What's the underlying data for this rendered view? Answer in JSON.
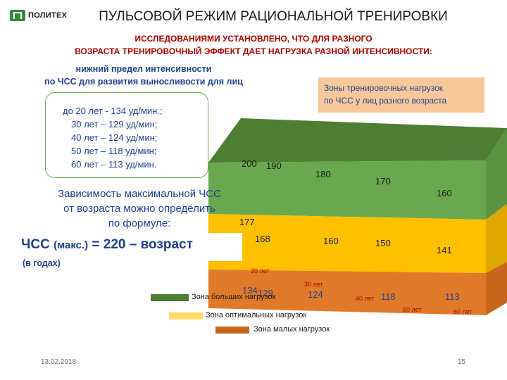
{
  "header": {
    "logo_text": "ПОЛИТЕХ",
    "title": "ПУЛЬСОВОЙ РЕЖИМ РАЦИОНАЛЬНОЙ ТРЕНИРОВКИ",
    "subtitle_line1": "ИССЛЕДОВАНИЯМИ УСТАНОВЛЕНО, ЧТО ДЛЯ РАЗНОГО",
    "subtitle_line2": "ВОЗРАСТА ТРЕНИРОВОЧНЫЙ ЭФФЕКТ ДАЕТ НАГРУЗКА  РАЗНОЙ ИНТЕНСИВНОСТИ:"
  },
  "lower_limit": {
    "line1": "нижний предел интенсивности",
    "line2": "по ЧСС  для развития выносливости  для лиц"
  },
  "age_list": [
    {
      "age": "до 20 лет - ",
      "value": "134 уд/мин.;"
    },
    {
      "age": "30 лет –   ",
      "value": "129 уд/мин;"
    },
    {
      "age": "40 лет –   ",
      "value": "124 уд/мин;"
    },
    {
      "age": "50 лет –   ",
      "value": "118 уд/мин;"
    },
    {
      "age": "60 лет –   ",
      "value": "113 уд/мин."
    }
  ],
  "zones_note": {
    "line1": "Зоны тренировочных нагрузок",
    "line2": "по ЧСС   у лиц разного возраста"
  },
  "formula": {
    "text_line1": "Зависимость максимальной ЧСС",
    "text_line2": "от возраста можно определить",
    "text_line3": "по формуле:",
    "main": "ЧСС",
    "main_small": "(макс.)",
    "rest": "= 220 –  возраст",
    "note": "(в  годах)"
  },
  "chart_data": {
    "type": "area",
    "categories": [
      "20 лет",
      "30 лет",
      "40 лет",
      "50 лет",
      "60 лет"
    ],
    "top_labels": [
      "200",
      "190",
      "180",
      "170",
      "160"
    ],
    "middle_labels": [
      "177",
      "168",
      "160",
      "150",
      "141"
    ],
    "bottom_labels": [
      "134",
      "129",
      "124",
      "118",
      "113"
    ],
    "age_labels": [
      "20 лет",
      "30 лет",
      "40 лет",
      "50 лет",
      "60 лет"
    ],
    "series": [
      {
        "name": "Зона больших нагрузок",
        "color": "#6aa84f"
      },
      {
        "name": "Зона оптимальных  нагрузок",
        "color": "#ffc000"
      },
      {
        "name": "Зона малых нагрузок",
        "color": "#e07a28"
      }
    ]
  },
  "footer": {
    "date": "13.02.2018",
    "page": "15"
  }
}
